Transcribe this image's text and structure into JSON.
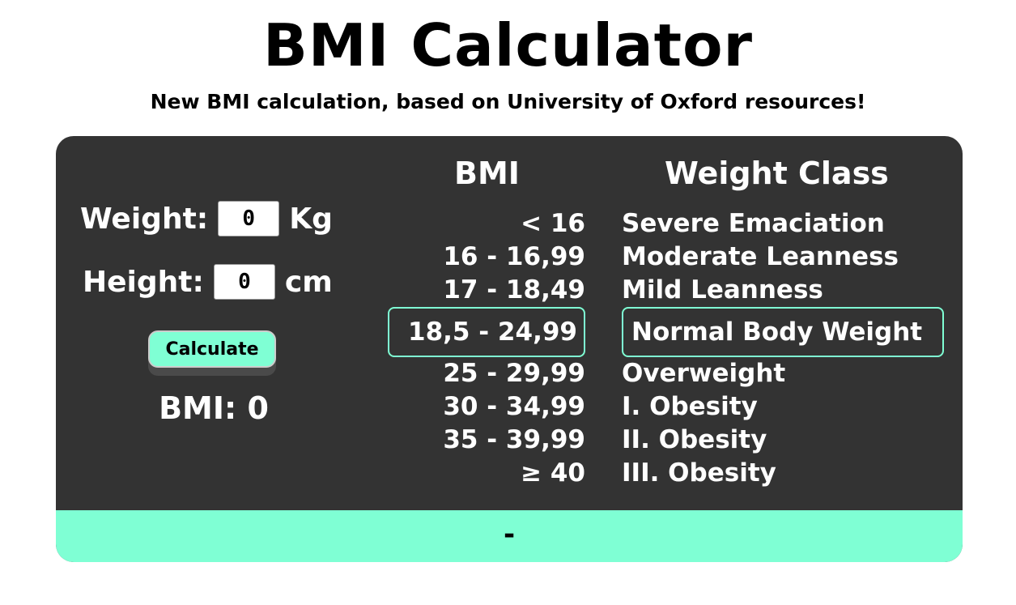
{
  "header": {
    "title": "BMI Calculator",
    "subtitle": "New BMI calculation, based on University of Oxford resources!"
  },
  "form": {
    "weight_label": "Weight:",
    "weight_value": "0",
    "weight_unit": "Kg",
    "height_label": "Height:",
    "height_value": "0",
    "height_unit": "cm",
    "calculate_label": "Calculate",
    "result_label": "BMI:",
    "result_value": "0"
  },
  "table": {
    "bmi_header": "BMI",
    "class_header": "Weight Class",
    "rows": [
      {
        "bmi": "< 16",
        "class": "Severe Emaciation"
      },
      {
        "bmi": "16 - 16,99",
        "class": "Moderate Leanness"
      },
      {
        "bmi": "17 - 18,49",
        "class": "Mild Leanness"
      },
      {
        "bmi": "18,5 - 24,99",
        "class": "Normal Body Weight"
      },
      {
        "bmi": "25 - 29,99",
        "class": "Overweight"
      },
      {
        "bmi": "30 - 34,99",
        "class": "I. Obesity"
      },
      {
        "bmi": "35 - 39,99",
        "class": "II. Obesity"
      },
      {
        "bmi": "≥ 40",
        "class": "III. Obesity"
      }
    ]
  },
  "footer": {
    "status": "-"
  },
  "colors": {
    "accent": "#7fffd4",
    "card": "#333333"
  }
}
